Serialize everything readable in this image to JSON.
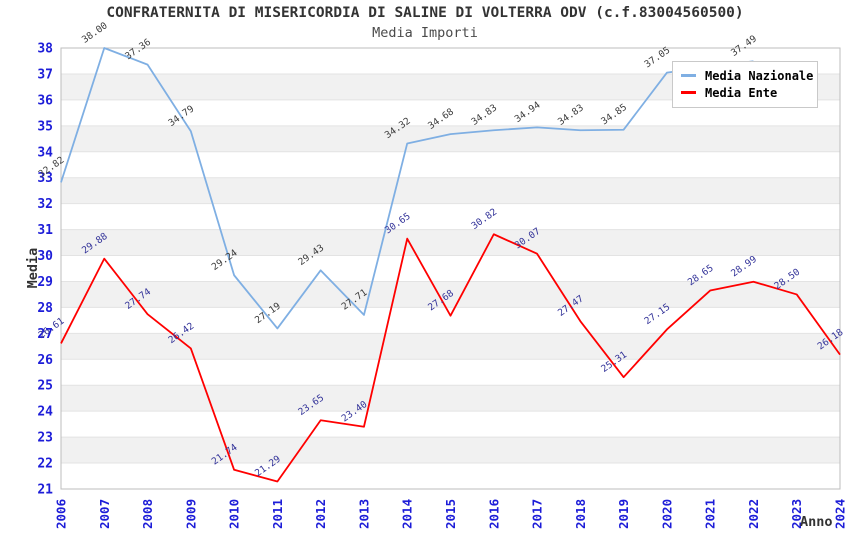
{
  "chart_data": {
    "type": "line",
    "title": "CONFRATERNITA DI MISERICORDIA DI SALINE DI VOLTERRA ODV (c.f.83004560500)",
    "subtitle": "Media Importi",
    "xlabel": "Anno",
    "ylabel": "Media",
    "ylim": [
      21,
      38
    ],
    "y_tick_step": 1,
    "x_tick_rotation": -90,
    "data_label_rotation": -35,
    "grid": {
      "band_low_color": "#f1f1f1",
      "band_high_color": "#ffffff",
      "line_color": "#e3e3e3",
      "border_color": "#bdbdbd",
      "bands_on_even_lower_bound": true
    },
    "tick_label_color": "#1d1dd8",
    "categories": [
      "2006",
      "2007",
      "2008",
      "2009",
      "2010",
      "2011",
      "2012",
      "2013",
      "2014",
      "2015",
      "2016",
      "2017",
      "2018",
      "2019",
      "2020",
      "2021",
      "2022",
      "2023",
      "2024"
    ],
    "series": [
      {
        "name": "Media Nazionale",
        "color": "#7fafe3",
        "label_color": "#3c3c3c",
        "values": [
          32.82,
          38.0,
          37.36,
          34.79,
          29.24,
          27.19,
          29.43,
          27.71,
          34.32,
          34.68,
          34.83,
          34.94,
          34.83,
          34.85,
          37.05,
          null,
          37.49,
          null,
          null
        ]
      },
      {
        "name": "Media Ente",
        "color": "#ff0000",
        "label_color": "#333399",
        "values": [
          26.61,
          29.88,
          27.74,
          26.42,
          21.74,
          21.29,
          23.65,
          23.4,
          30.65,
          27.68,
          30.82,
          30.07,
          27.47,
          25.31,
          27.15,
          28.65,
          28.99,
          28.5,
          26.18
        ]
      }
    ],
    "legend": {
      "position": "top-right",
      "entries": [
        {
          "label": "Media Nazionale"
        },
        {
          "label": "Media Ente"
        }
      ]
    }
  }
}
